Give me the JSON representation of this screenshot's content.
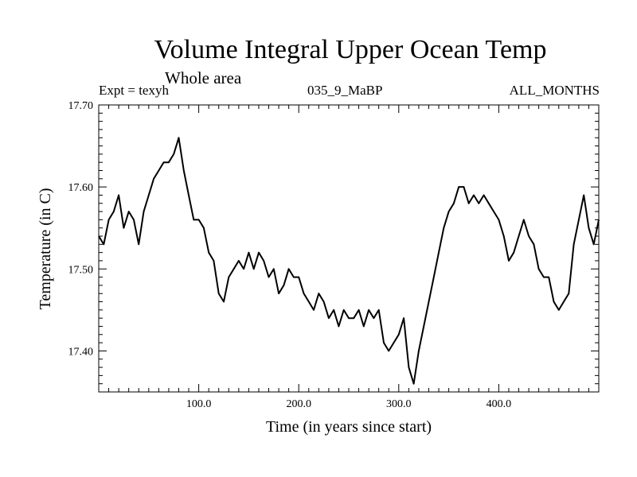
{
  "chart_data": {
    "type": "line",
    "title": "Volume Integral Upper Ocean Temp",
    "subtitle": "Whole area",
    "header_left": "Expt = texyh",
    "header_center": "035_9_MaBP",
    "header_right": "ALL_MONTHS",
    "xlabel": "Time (in years since start)",
    "ylabel": "Temperature (in C)",
    "xlim": [
      0,
      500
    ],
    "ylim": [
      17.35,
      17.7
    ],
    "xticks": [
      100,
      200,
      300,
      400
    ],
    "xtick_labels": [
      "100.0",
      "200.0",
      "300.0",
      "400.0"
    ],
    "yticks": [
      17.4,
      17.5,
      17.6,
      17.7
    ],
    "ytick_labels": [
      "17.40",
      "17.50",
      "17.60",
      "17.70"
    ],
    "grid": false,
    "series": [
      {
        "color": "#000000",
        "x": [
          0,
          5,
          10,
          15,
          20,
          25,
          30,
          35,
          40,
          45,
          50,
          55,
          60,
          65,
          70,
          75,
          80,
          85,
          90,
          95,
          100,
          105,
          110,
          115,
          120,
          125,
          130,
          135,
          140,
          145,
          150,
          155,
          160,
          165,
          170,
          175,
          180,
          185,
          190,
          195,
          200,
          205,
          210,
          215,
          220,
          225,
          230,
          235,
          240,
          245,
          250,
          255,
          260,
          265,
          270,
          275,
          280,
          285,
          290,
          295,
          300,
          305,
          310,
          315,
          320,
          325,
          330,
          335,
          340,
          345,
          350,
          355,
          360,
          365,
          370,
          375,
          380,
          385,
          390,
          395,
          400,
          405,
          410,
          415,
          420,
          425,
          430,
          435,
          440,
          445,
          450,
          455,
          460,
          465,
          470,
          475,
          480,
          485,
          490,
          495,
          500
        ],
        "y": [
          17.54,
          17.53,
          17.56,
          17.57,
          17.59,
          17.55,
          17.57,
          17.56,
          17.53,
          17.57,
          17.59,
          17.61,
          17.62,
          17.63,
          17.63,
          17.64,
          17.66,
          17.62,
          17.59,
          17.56,
          17.56,
          17.55,
          17.52,
          17.51,
          17.47,
          17.46,
          17.49,
          17.5,
          17.51,
          17.5,
          17.52,
          17.5,
          17.52,
          17.51,
          17.49,
          17.5,
          17.47,
          17.48,
          17.5,
          17.49,
          17.49,
          17.47,
          17.46,
          17.45,
          17.47,
          17.46,
          17.44,
          17.45,
          17.43,
          17.45,
          17.44,
          17.44,
          17.45,
          17.43,
          17.45,
          17.44,
          17.45,
          17.41,
          17.4,
          17.41,
          17.42,
          17.44,
          17.38,
          17.36,
          17.4,
          17.43,
          17.46,
          17.49,
          17.52,
          17.55,
          17.57,
          17.58,
          17.6,
          17.6,
          17.58,
          17.59,
          17.58,
          17.59,
          17.58,
          17.57,
          17.56,
          17.54,
          17.51,
          17.52,
          17.54,
          17.56,
          17.54,
          17.53,
          17.5,
          17.49,
          17.49,
          17.46,
          17.45,
          17.46,
          17.47,
          17.53,
          17.56,
          17.59,
          17.55,
          17.53,
          17.56
        ]
      }
    ]
  }
}
